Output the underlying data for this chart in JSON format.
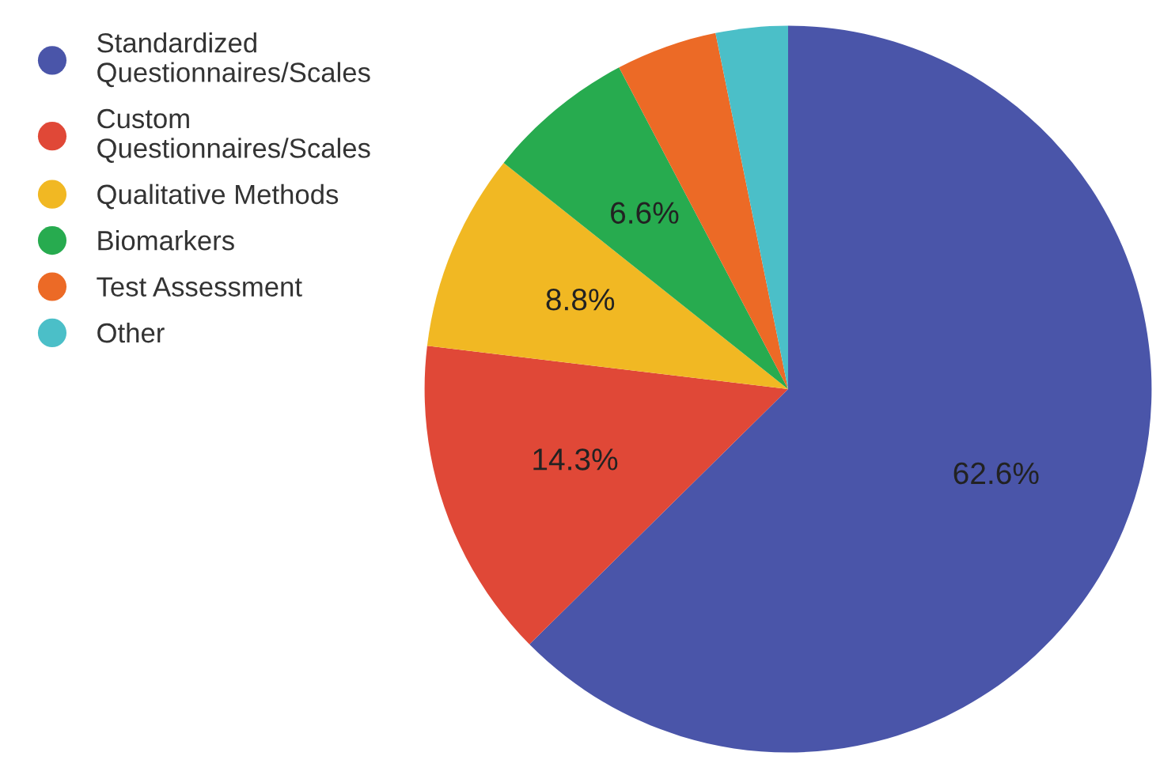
{
  "chart_data": {
    "type": "pie",
    "categories": [
      "Standardized\nQuestionnaires/Scales",
      "Custom\nQuestionnaires/Scales",
      "Qualitative Methods",
      "Biomarkers",
      "Test Assessment",
      "Other"
    ],
    "values": [
      62.6,
      14.3,
      8.8,
      6.6,
      4.5,
      3.2
    ],
    "value_labels": [
      "62.6%",
      "14.3%",
      "8.8%",
      "6.6%",
      null,
      null
    ],
    "colors": [
      "#4a55a9",
      "#e04837",
      "#f1b823",
      "#27ab4f",
      "#ec6a26",
      "#4bbfc8"
    ],
    "legend": "left"
  }
}
